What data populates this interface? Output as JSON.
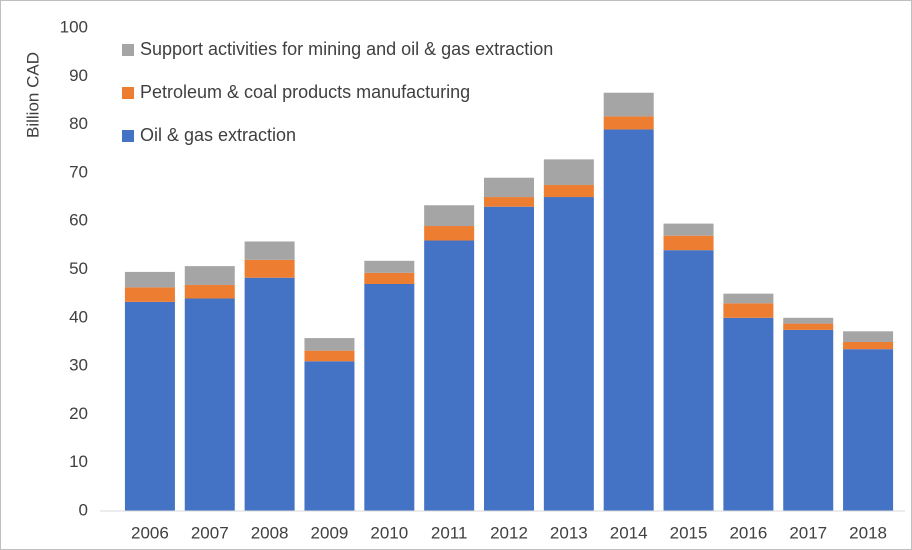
{
  "chart_data": {
    "type": "stacked-bar",
    "y_label": "Billion CAD",
    "categories": [
      "2006",
      "2007",
      "2008",
      "2009",
      "2010",
      "2011",
      "2012",
      "2013",
      "2014",
      "2015",
      "2016",
      "2017",
      "2018"
    ],
    "series": [
      {
        "name": "Oil & gas extraction",
        "color": "#4472c4",
        "values": [
          43.3,
          44,
          48.3,
          31,
          47,
          56,
          63,
          65,
          79,
          54,
          40,
          37.5,
          33.5
        ]
      },
      {
        "name": "Petroleum & coal products manufacturing",
        "color": "#ed7d31",
        "values": [
          3,
          2.8,
          3.7,
          2.2,
          2.3,
          3,
          2,
          2.5,
          2.7,
          3,
          3,
          1.3,
          1.5
        ]
      },
      {
        "name": "Support activities for mining and oil & gas extraction",
        "color": "#a5a5a5",
        "values": [
          3.2,
          3.9,
          3.8,
          2.6,
          2.5,
          4.3,
          4,
          5.3,
          4.9,
          2.5,
          2,
          1.2,
          2.2
        ]
      }
    ],
    "ylim": [
      0,
      100
    ],
    "yticks": [
      0,
      10,
      20,
      30,
      40,
      50,
      60,
      70,
      80,
      90,
      100
    ],
    "grid": false,
    "legend": "top-left"
  }
}
